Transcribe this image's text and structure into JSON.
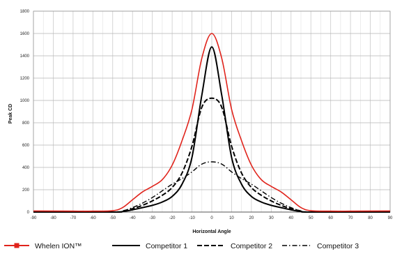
{
  "chart_data": {
    "type": "line",
    "title": "",
    "xlabel": "Horizontal Angle",
    "ylabel": "Peak CD",
    "xlim": [
      -90,
      90
    ],
    "ylim": [
      0,
      1800
    ],
    "grid": true,
    "legend_placement": "bottom",
    "x_ticks": [
      "-90",
      "-80",
      "-70",
      "-60",
      "-50",
      "-40",
      "-30",
      "-20",
      "-10",
      "0",
      "10",
      "20",
      "30",
      "40",
      "50",
      "60",
      "70",
      "80",
      "90"
    ],
    "y_ticks": [
      "0",
      "200",
      "400",
      "600",
      "800",
      "1000",
      "1200",
      "1400",
      "1600",
      "1800"
    ],
    "series": [
      {
        "name": "Whelen ION™",
        "color": "#e0231b",
        "dash": "solid",
        "marker": "square",
        "x": [
          -90,
          -70,
          -60,
          -50,
          -45,
          -40,
          -35,
          -30,
          -25,
          -20,
          -15,
          -10,
          -5,
          0,
          5,
          10,
          15,
          20,
          25,
          30,
          35,
          40,
          45,
          50,
          60,
          70,
          90
        ],
        "y": [
          10,
          8,
          8,
          12,
          40,
          110,
          180,
          230,
          290,
          420,
          640,
          920,
          1380,
          1600,
          1380,
          920,
          640,
          420,
          290,
          230,
          180,
          110,
          40,
          12,
          8,
          8,
          10
        ]
      },
      {
        "name": "Competitor 1",
        "color": "#000000",
        "dash": "solid",
        "x": [
          -90,
          -50,
          -45,
          -40,
          -35,
          -30,
          -25,
          -20,
          -15,
          -10,
          -5,
          0,
          5,
          10,
          15,
          20,
          25,
          30,
          35,
          40,
          45,
          50,
          90
        ],
        "y": [
          0,
          0,
          5,
          20,
          40,
          60,
          90,
          140,
          250,
          490,
          1050,
          1480,
          1050,
          490,
          250,
          140,
          90,
          60,
          40,
          20,
          5,
          0,
          0
        ]
      },
      {
        "name": "Competitor 2",
        "color": "#000000",
        "dash": "dashed",
        "x": [
          -90,
          -50,
          -45,
          -40,
          -35,
          -30,
          -25,
          -20,
          -15,
          -10,
          -5,
          0,
          5,
          10,
          15,
          20,
          25,
          30,
          35,
          40,
          45,
          50,
          90
        ],
        "y": [
          0,
          0,
          10,
          30,
          60,
          100,
          150,
          220,
          350,
          590,
          940,
          1020,
          940,
          590,
          350,
          220,
          150,
          100,
          60,
          30,
          10,
          0,
          0
        ]
      },
      {
        "name": "Competitor 3",
        "color": "#000000",
        "dash": "dashdot",
        "x": [
          -90,
          -50,
          -45,
          -40,
          -35,
          -30,
          -25,
          -20,
          -15,
          -10,
          -5,
          0,
          5,
          10,
          15,
          20,
          25,
          30,
          35,
          40,
          45,
          50,
          90
        ],
        "y": [
          0,
          0,
          10,
          40,
          80,
          130,
          190,
          250,
          300,
          360,
          430,
          450,
          430,
          360,
          300,
          250,
          190,
          130,
          80,
          40,
          10,
          0,
          0
        ]
      }
    ]
  }
}
